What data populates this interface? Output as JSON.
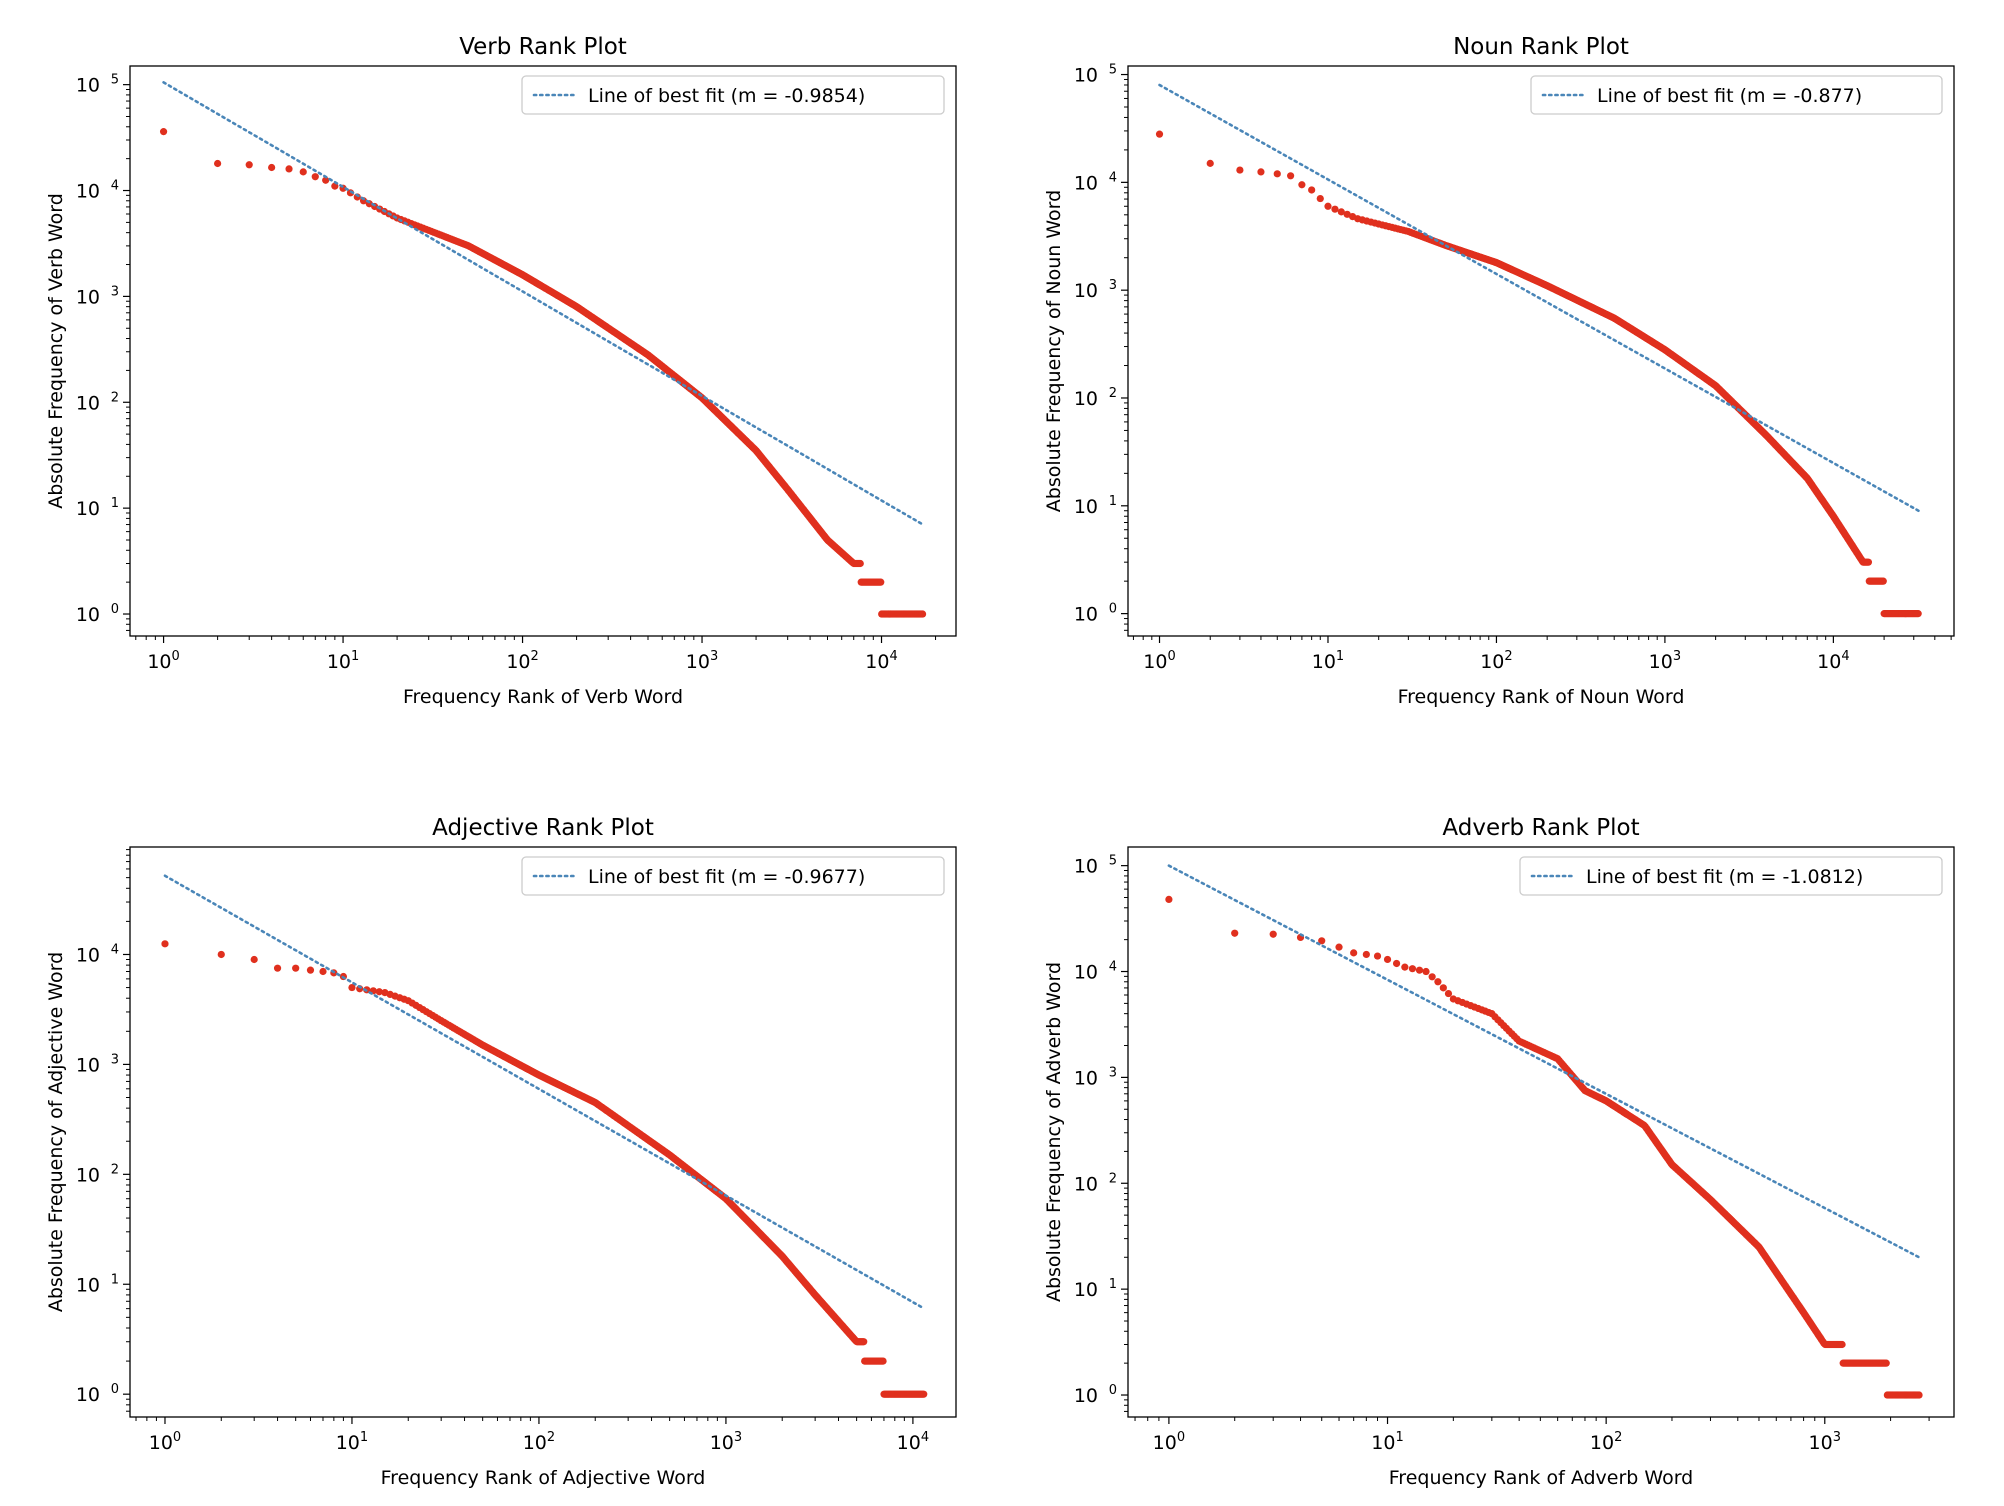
{
  "colors": {
    "points": "#e0301e",
    "fit_line": "#4a86b8",
    "axes": "#000000",
    "legend_border": "#cccccc"
  },
  "chart_data": [
    {
      "type": "scatter",
      "title": "Verb Rank Plot",
      "xlabel": "Frequency Rank of Verb Word",
      "ylabel": "Absolute Frequency of Verb Word",
      "xscale": "log",
      "yscale": "log",
      "xlim": [
        0.65,
        26000
      ],
      "ylim": [
        0.62,
        150000
      ],
      "xticks": [
        1,
        10,
        100,
        1000,
        10000
      ],
      "yticks": [
        1,
        10,
        100,
        1000,
        10000,
        100000
      ],
      "tick_base": "10",
      "n_ranks": 17000,
      "grid": false,
      "legend": {
        "position": "top-right",
        "label": "Line of best fit (m = -0.9854)"
      },
      "fit": {
        "slope": -0.9854,
        "x": [
          1,
          17000
        ],
        "y": [
          105000,
          7
        ]
      },
      "series": [
        {
          "x": [
            1,
            2,
            3,
            4,
            5,
            6,
            7,
            8,
            9,
            10,
            13,
            20,
            50,
            100,
            200,
            500,
            1000,
            2000,
            3000,
            5000,
            7000,
            10000,
            17000
          ],
          "y": [
            36000,
            18000,
            17500,
            16500,
            16000,
            15000,
            13500,
            12500,
            11000,
            10500,
            8000,
            5500,
            3000,
            1600,
            800,
            280,
            110,
            35,
            15,
            5,
            3,
            1.5,
            1
          ]
        }
      ]
    },
    {
      "type": "scatter",
      "title": "Noun Rank Plot",
      "xlabel": "Frequency Rank of Noun Word",
      "ylabel": "Absolute Frequency of Noun Word",
      "xscale": "log",
      "yscale": "log",
      "xlim": [
        0.65,
        52000
      ],
      "ylim": [
        0.62,
        120000
      ],
      "xticks": [
        1,
        10,
        100,
        1000,
        10000
      ],
      "yticks": [
        1,
        10,
        100,
        1000,
        10000,
        100000
      ],
      "tick_base": "10",
      "n_ranks": 32000,
      "grid": false,
      "legend": {
        "position": "top-right",
        "label": "Line of best fit (m = -0.877)"
      },
      "fit": {
        "slope": -0.877,
        "x": [
          1,
          32000
        ],
        "y": [
          80000,
          9
        ]
      },
      "series": [
        {
          "x": [
            1,
            2,
            3,
            4,
            5,
            6,
            7,
            8,
            10,
            15,
            30,
            50,
            100,
            200,
            500,
            1000,
            2000,
            4000,
            7000,
            10000,
            15000,
            20000,
            32000
          ],
          "y": [
            28000,
            15000,
            13000,
            12500,
            12000,
            11500,
            9500,
            8500,
            6000,
            4600,
            3500,
            2600,
            1800,
            1100,
            550,
            280,
            130,
            45,
            18,
            8,
            3,
            1.5,
            1
          ]
        }
      ]
    },
    {
      "type": "scatter",
      "title": "Adjective Rank Plot",
      "xlabel": "Frequency Rank of Adjective Word",
      "ylabel": "Absolute Frequency of Adjective Word",
      "xscale": "log",
      "yscale": "log",
      "xlim": [
        0.65,
        17000
      ],
      "ylim": [
        0.62,
        95000
      ],
      "xticks": [
        1,
        10,
        100,
        1000,
        10000
      ],
      "yticks": [
        1,
        10,
        100,
        1000,
        10000
      ],
      "tick_base": "10",
      "n_ranks": 11500,
      "grid": false,
      "legend": {
        "position": "top-right",
        "label": "Line of best fit (m = -0.9677)"
      },
      "fit": {
        "slope": -0.9677,
        "x": [
          1,
          11500
        ],
        "y": [
          52000,
          6
        ]
      },
      "series": [
        {
          "x": [
            1,
            2,
            3,
            4,
            5,
            6,
            7,
            8,
            9,
            10,
            15,
            20,
            30,
            50,
            100,
            200,
            500,
            1000,
            2000,
            3000,
            5000,
            7000,
            11500
          ],
          "y": [
            12500,
            10000,
            9000,
            7500,
            7500,
            7200,
            7000,
            6800,
            6300,
            5000,
            4500,
            3800,
            2500,
            1500,
            800,
            450,
            150,
            60,
            18,
            8,
            3,
            1.5,
            1
          ]
        }
      ]
    },
    {
      "type": "scatter",
      "title": "Adverb Rank Plot",
      "xlabel": "Frequency Rank of Adverb Word",
      "ylabel": "Absolute Frequency of Adverb Word",
      "xscale": "log",
      "yscale": "log",
      "xlim": [
        0.65,
        3900
      ],
      "ylim": [
        0.62,
        150000
      ],
      "xticks": [
        1,
        10,
        100,
        1000
      ],
      "yticks": [
        1,
        10,
        100,
        1000,
        10000,
        100000
      ],
      "tick_base": "10",
      "n_ranks": 2700,
      "grid": false,
      "legend": {
        "position": "top-right",
        "label": "Line of best fit (m = -1.0812)"
      },
      "fit": {
        "slope": -1.0812,
        "x": [
          1,
          2700
        ],
        "y": [
          100000,
          20
        ]
      },
      "series": [
        {
          "x": [
            1,
            2,
            3,
            4,
            5,
            6,
            7,
            8,
            9,
            10,
            12,
            15,
            17,
            20,
            30,
            40,
            60,
            80,
            100,
            150,
            200,
            300,
            500,
            800,
            1000,
            1500,
            2700
          ],
          "y": [
            48000,
            23000,
            22500,
            21000,
            19500,
            17000,
            15000,
            14500,
            14000,
            13000,
            11000,
            10000,
            8000,
            5500,
            4000,
            2200,
            1500,
            750,
            600,
            350,
            150,
            70,
            25,
            6,
            3,
            2,
            1
          ]
        }
      ]
    }
  ]
}
